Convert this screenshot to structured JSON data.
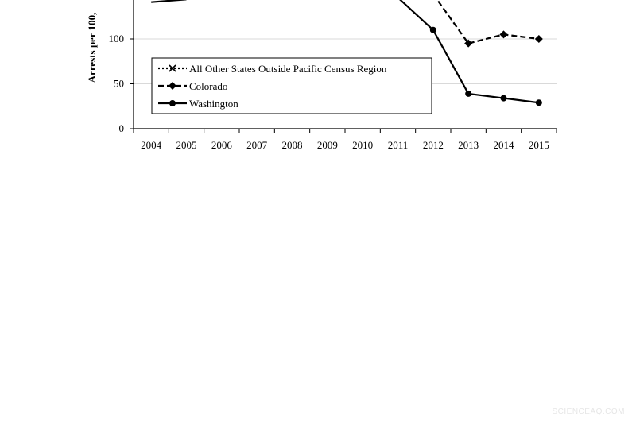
{
  "chart_data": {
    "type": "line",
    "title": "",
    "xlabel": "",
    "ylabel": "Arrests per 100,",
    "categories": [
      "2004",
      "2005",
      "2006",
      "2007",
      "2008",
      "2009",
      "2010",
      "2011",
      "2012",
      "2013",
      "2014",
      "2015"
    ],
    "ylim": [
      0,
      150
    ],
    "yticks": [
      0,
      50,
      100
    ],
    "grid": true,
    "legend_position": "bottom-left",
    "series": [
      {
        "name": "All Other States Outside Pacific Census Region",
        "style": "dotted",
        "marker": "x",
        "values": [
          null,
          null,
          null,
          null,
          null,
          null,
          null,
          null,
          null,
          null,
          null,
          null
        ]
      },
      {
        "name": "Colorado",
        "style": "dashed",
        "marker": "diamond",
        "values": [
          null,
          null,
          null,
          null,
          null,
          null,
          null,
          null,
          150,
          95,
          105,
          100
        ]
      },
      {
        "name": "Washington",
        "style": "solid",
        "marker": "circle",
        "values": [
          141,
          144,
          null,
          null,
          null,
          null,
          null,
          146,
          110,
          39,
          34,
          29
        ]
      }
    ]
  },
  "colors": {
    "line": "#000000",
    "grid": "#d9d9d9",
    "watermark": "#e6e6e6"
  },
  "watermark": "SCIENCEAQ.COM"
}
